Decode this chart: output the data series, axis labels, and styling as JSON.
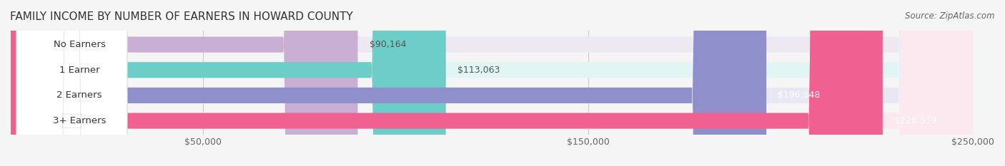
{
  "title": "FAMILY INCOME BY NUMBER OF EARNERS IN HOWARD COUNTY",
  "source": "Source: ZipAtlas.com",
  "categories": [
    "No Earners",
    "1 Earner",
    "2 Earners",
    "3+ Earners"
  ],
  "values": [
    90164,
    113063,
    196348,
    226559
  ],
  "bar_colors": [
    "#c9afd4",
    "#6dcdc8",
    "#8f8fcc",
    "#f06090"
  ],
  "bg_colors": [
    "#ede8f2",
    "#e0f5f4",
    "#e8e8f5",
    "#fce8ef"
  ],
  "value_labels": [
    "$90,164",
    "$113,063",
    "$196,348",
    "$226,559"
  ],
  "xlim": [
    0,
    250000
  ],
  "xticks": [
    50000,
    150000,
    250000
  ],
  "xtick_labels": [
    "$50,000",
    "$150,000",
    "$250,000"
  ],
  "background_color": "#f5f5f5",
  "bar_background": "#ebebeb",
  "title_fontsize": 11,
  "label_fontsize": 9.5,
  "value_fontsize": 9,
  "source_fontsize": 8.5
}
